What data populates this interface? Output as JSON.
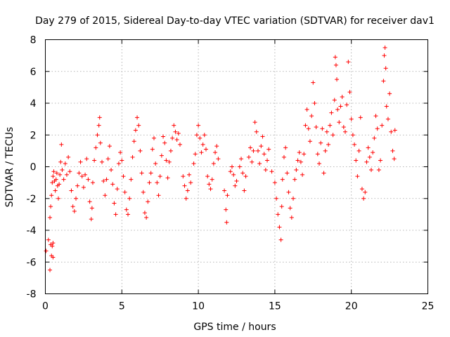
{
  "chart_data": {
    "type": "scatter",
    "title": "Day 279 of 2015, Sidereal Day-to-day VTEC variation (SDTVAR) for receiver dav1",
    "xlabel": "GPS time / hours",
    "ylabel": "SDTVAR / TECUs",
    "xlim": [
      0,
      25
    ],
    "ylim": [
      -8,
      8
    ],
    "xticks": [
      "0",
      "5",
      "10",
      "15",
      "20",
      "25"
    ],
    "yticks": [
      "-8",
      "-6",
      "-4",
      "-2",
      "0",
      "2",
      "4",
      "6",
      "8"
    ],
    "grid": true,
    "legend": "none",
    "marker": "+",
    "series": [
      {
        "name": "dav1",
        "color": "#ff0000",
        "points": [
          [
            0.05,
            -5.3
          ],
          [
            0.2,
            -4.6
          ],
          [
            0.3,
            -6.5
          ],
          [
            0.35,
            -4.9
          ],
          [
            0.4,
            -5.6
          ],
          [
            0.45,
            -5.0
          ],
          [
            0.5,
            -4.8
          ],
          [
            0.5,
            -5.7
          ],
          [
            0.3,
            -3.2
          ],
          [
            0.35,
            -2.5
          ],
          [
            0.4,
            -1.8
          ],
          [
            0.45,
            -1.0
          ],
          [
            0.5,
            -0.6
          ],
          [
            0.55,
            -0.3
          ],
          [
            0.6,
            -0.9
          ],
          [
            0.65,
            -1.5
          ],
          [
            0.7,
            -0.8
          ],
          [
            0.75,
            -0.4
          ],
          [
            0.8,
            -1.2
          ],
          [
            0.85,
            -2.0
          ],
          [
            0.9,
            -1.1
          ],
          [
            0.95,
            -0.5
          ],
          [
            1.0,
            0.3
          ],
          [
            1.05,
            1.4
          ],
          [
            1.1,
            -0.2
          ],
          [
            1.2,
            -0.8
          ],
          [
            1.3,
            0.2
          ],
          [
            1.4,
            -0.5
          ],
          [
            1.5,
            0.6
          ],
          [
            1.6,
            -0.3
          ],
          [
            1.7,
            -1.5
          ],
          [
            1.8,
            -2.5
          ],
          [
            1.9,
            -2.8
          ],
          [
            2.0,
            -2.0
          ],
          [
            2.1,
            -1.2
          ],
          [
            2.2,
            -0.4
          ],
          [
            2.3,
            0.3
          ],
          [
            2.4,
            -0.6
          ],
          [
            2.5,
            -1.3
          ],
          [
            2.6,
            -0.5
          ],
          [
            2.7,
            0.5
          ],
          [
            2.8,
            -0.8
          ],
          [
            2.9,
            -2.2
          ],
          [
            3.0,
            -3.3
          ],
          [
            3.05,
            -2.6
          ],
          [
            3.1,
            -1.0
          ],
          [
            3.2,
            0.4
          ],
          [
            3.3,
            1.2
          ],
          [
            3.4,
            2.0
          ],
          [
            3.5,
            2.6
          ],
          [
            3.55,
            3.1
          ],
          [
            3.6,
            1.5
          ],
          [
            3.7,
            0.3
          ],
          [
            3.8,
            -0.9
          ],
          [
            3.9,
            -1.8
          ],
          [
            4.0,
            -0.8
          ],
          [
            4.1,
            0.5
          ],
          [
            4.2,
            1.3
          ],
          [
            4.3,
            -0.2
          ],
          [
            4.4,
            -1.1
          ],
          [
            4.5,
            -2.3
          ],
          [
            4.6,
            -3.0
          ],
          [
            4.7,
            -1.4
          ],
          [
            4.8,
            0.2
          ],
          [
            4.9,
            0.9
          ],
          [
            5.0,
            0.4
          ],
          [
            5.1,
            -0.6
          ],
          [
            5.2,
            -1.6
          ],
          [
            5.3,
            -2.7
          ],
          [
            5.4,
            -3.0
          ],
          [
            5.5,
            -2.0
          ],
          [
            5.6,
            -0.8
          ],
          [
            5.7,
            0.6
          ],
          [
            5.8,
            1.6
          ],
          [
            5.9,
            2.3
          ],
          [
            6.0,
            3.1
          ],
          [
            6.1,
            2.6
          ],
          [
            6.2,
            1.0
          ],
          [
            6.3,
            -0.4
          ],
          [
            6.4,
            -1.6
          ],
          [
            6.5,
            -2.9
          ],
          [
            6.6,
            -3.2
          ],
          [
            6.7,
            -2.2
          ],
          [
            6.8,
            -1.0
          ],
          [
            6.9,
            -0.4
          ],
          [
            7.0,
            1.1
          ],
          [
            7.1,
            1.8
          ],
          [
            7.2,
            0.2
          ],
          [
            7.3,
            -1.0
          ],
          [
            7.4,
            -1.8
          ],
          [
            7.5,
            -0.6
          ],
          [
            7.6,
            0.7
          ],
          [
            7.7,
            1.9
          ],
          [
            7.8,
            1.5
          ],
          [
            7.9,
            0.4
          ],
          [
            8.0,
            -0.7
          ],
          [
            8.1,
            0.3
          ],
          [
            8.2,
            1.0
          ],
          [
            8.3,
            1.8
          ],
          [
            8.4,
            2.6
          ],
          [
            8.5,
            2.2
          ],
          [
            8.6,
            1.7
          ],
          [
            8.7,
            2.1
          ],
          [
            8.8,
            1.4
          ],
          [
            9.0,
            -0.6
          ],
          [
            9.1,
            -1.2
          ],
          [
            9.2,
            -2.0
          ],
          [
            9.3,
            -1.5
          ],
          [
            9.4,
            -0.5
          ],
          [
            9.5,
            -1.0
          ],
          [
            9.7,
            0.2
          ],
          [
            9.8,
            0.8
          ],
          [
            9.9,
            2.0
          ],
          [
            10.0,
            2.6
          ],
          [
            10.1,
            1.8
          ],
          [
            10.2,
            0.9
          ],
          [
            10.3,
            1.4
          ],
          [
            10.4,
            2.0
          ],
          [
            10.5,
            1.1
          ],
          [
            10.6,
            -0.6
          ],
          [
            10.7,
            -1.1
          ],
          [
            10.8,
            -1.4
          ],
          [
            10.9,
            -0.8
          ],
          [
            11.0,
            0.2
          ],
          [
            11.1,
            0.9
          ],
          [
            11.2,
            1.3
          ],
          [
            11.3,
            0.5
          ],
          [
            11.7,
            -1.5
          ],
          [
            11.8,
            -2.7
          ],
          [
            11.85,
            -3.5
          ],
          [
            11.9,
            -1.8
          ],
          [
            12.1,
            -0.3
          ],
          [
            12.2,
            0.0
          ],
          [
            12.3,
            -0.5
          ],
          [
            12.4,
            -1.2
          ],
          [
            12.5,
            -0.9
          ],
          [
            12.7,
            0.0
          ],
          [
            12.8,
            0.5
          ],
          [
            12.9,
            -0.4
          ],
          [
            13.0,
            -1.5
          ],
          [
            13.1,
            -0.6
          ],
          [
            13.3,
            0.6
          ],
          [
            13.4,
            1.2
          ],
          [
            13.5,
            0.3
          ],
          [
            13.6,
            1.0
          ],
          [
            13.7,
            2.8
          ],
          [
            13.8,
            2.2
          ],
          [
            13.9,
            1.0
          ],
          [
            14.0,
            0.2
          ],
          [
            14.1,
            1.3
          ],
          [
            14.2,
            1.9
          ],
          [
            14.3,
            0.8
          ],
          [
            14.4,
            -0.2
          ],
          [
            14.5,
            0.4
          ],
          [
            14.6,
            1.1
          ],
          [
            14.8,
            -0.3
          ],
          [
            15.0,
            -1.0
          ],
          [
            15.1,
            -2.0
          ],
          [
            15.2,
            -3.0
          ],
          [
            15.3,
            -3.8
          ],
          [
            15.4,
            -4.6
          ],
          [
            15.45,
            -2.5
          ],
          [
            15.5,
            -0.8
          ],
          [
            15.6,
            0.6
          ],
          [
            15.7,
            1.2
          ],
          [
            15.8,
            -0.4
          ],
          [
            15.9,
            -1.6
          ],
          [
            16.0,
            -2.6
          ],
          [
            16.1,
            -3.2
          ],
          [
            16.2,
            -2.0
          ],
          [
            16.3,
            -0.8
          ],
          [
            16.4,
            -0.2
          ],
          [
            16.5,
            0.4
          ],
          [
            16.6,
            0.9
          ],
          [
            16.7,
            0.3
          ],
          [
            16.8,
            -0.5
          ],
          [
            16.9,
            0.8
          ],
          [
            17.0,
            2.6
          ],
          [
            17.1,
            3.6
          ],
          [
            17.2,
            2.4
          ],
          [
            17.3,
            1.6
          ],
          [
            17.4,
            3.2
          ],
          [
            17.5,
            5.3
          ],
          [
            17.6,
            4.0
          ],
          [
            17.7,
            2.5
          ],
          [
            17.8,
            0.8
          ],
          [
            17.9,
            0.2
          ],
          [
            18.0,
            1.5
          ],
          [
            18.1,
            2.4
          ],
          [
            18.2,
            -0.4
          ],
          [
            18.3,
            1.0
          ],
          [
            18.4,
            2.2
          ],
          [
            18.5,
            1.4
          ],
          [
            18.6,
            2.6
          ],
          [
            18.7,
            3.4
          ],
          [
            18.8,
            2.0
          ],
          [
            18.9,
            4.2
          ],
          [
            18.95,
            6.9
          ],
          [
            19.0,
            6.4
          ],
          [
            19.05,
            5.5
          ],
          [
            19.1,
            3.6
          ],
          [
            19.2,
            2.8
          ],
          [
            19.3,
            3.8
          ],
          [
            19.4,
            4.4
          ],
          [
            19.5,
            2.5
          ],
          [
            19.6,
            2.2
          ],
          [
            19.7,
            3.9
          ],
          [
            19.8,
            6.6
          ],
          [
            19.9,
            4.7
          ],
          [
            20.0,
            3.0
          ],
          [
            20.1,
            2.0
          ],
          [
            20.2,
            1.4
          ],
          [
            20.3,
            0.4
          ],
          [
            20.4,
            -0.6
          ],
          [
            20.5,
            1.0
          ],
          [
            20.6,
            3.1
          ],
          [
            20.7,
            -1.4
          ],
          [
            20.8,
            -2.0
          ],
          [
            20.9,
            -1.6
          ],
          [
            21.0,
            0.3
          ],
          [
            21.1,
            1.2
          ],
          [
            21.2,
            0.6
          ],
          [
            21.3,
            -0.2
          ],
          [
            21.4,
            0.9
          ],
          [
            21.5,
            1.8
          ],
          [
            21.6,
            3.2
          ],
          [
            21.7,
            2.4
          ],
          [
            21.8,
            -0.2
          ],
          [
            21.9,
            0.4
          ],
          [
            22.0,
            2.6
          ],
          [
            22.1,
            5.4
          ],
          [
            22.15,
            7.0
          ],
          [
            22.2,
            7.5
          ],
          [
            22.25,
            6.2
          ],
          [
            22.3,
            3.8
          ],
          [
            22.4,
            3.0
          ],
          [
            22.5,
            4.6
          ],
          [
            22.6,
            2.2
          ],
          [
            22.7,
            1.0
          ],
          [
            22.8,
            0.5
          ],
          [
            22.85,
            2.3
          ]
        ]
      }
    ]
  }
}
